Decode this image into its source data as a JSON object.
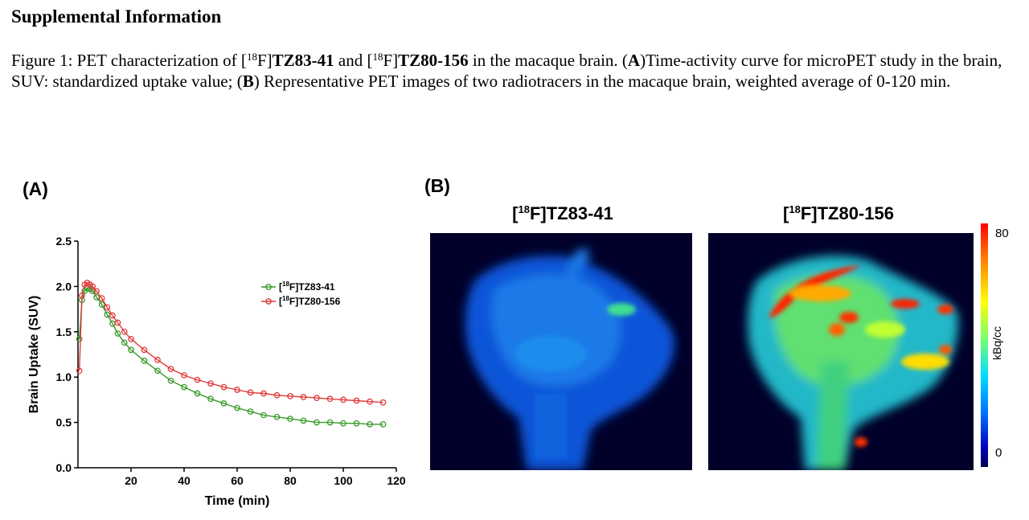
{
  "heading": "Supplemental Information",
  "caption": {
    "t1": "Figure 1: PET characterization of [",
    "sup1": "18",
    "t2": "F]",
    "b1": "TZ83-41",
    "t3": " and [",
    "sup2": "18",
    "t4": "F]",
    "b2": "TZ80-156",
    "t5": " in the macaque brain. (",
    "bA": "A",
    "t6": ")Time-activity curve for microPET study in the brain, SUV: standardized uptake value; (",
    "bB": "B",
    "t7": ") Representative PET images of two radiotracers in the macaque brain, weighted average of 0-120 min."
  },
  "panel_a_label": "(A)",
  "panel_b_label": "(B)",
  "images": {
    "left": {
      "sup": "18",
      "pre": "[",
      "post": "F]TZ83-41"
    },
    "right": {
      "sup": "18",
      "pre": "[",
      "post": "F]TZ80-156"
    }
  },
  "colorbar": {
    "max_label": "80",
    "min_label": "0",
    "unit": "kBq/cc"
  },
  "colors": {
    "series1": "#3a9a2a",
    "series2": "#e03a3a"
  },
  "chart_data": {
    "type": "line",
    "xlabel": "Time (min)",
    "ylabel": "Brain Uptake (SUV)",
    "xlim": [
      0,
      120
    ],
    "ylim": [
      0,
      2.5
    ],
    "xticks": [
      20,
      40,
      60,
      80,
      100,
      120
    ],
    "yticks": [
      0.0,
      0.5,
      1.0,
      1.5,
      2.0,
      2.5
    ],
    "ytick_labels": [
      "0.0",
      "0.5",
      "1.0",
      "1.5",
      "2.0",
      "2.5"
    ],
    "legend_position": "top-right",
    "series": [
      {
        "name": "[18F]TZ83-41",
        "legend_sup": "18",
        "legend_pre": "[",
        "legend_post": "F]TZ83-41",
        "color": "#3a9a2a",
        "x": [
          0.5,
          1.5,
          2.5,
          3.5,
          4.5,
          5.5,
          7,
          9,
          11,
          13,
          15,
          17.5,
          20,
          25,
          30,
          35,
          40,
          45,
          50,
          55,
          60,
          65,
          70,
          75,
          80,
          85,
          90,
          95,
          100,
          105,
          110,
          115
        ],
        "y": [
          1.42,
          1.85,
          1.95,
          1.98,
          1.97,
          1.95,
          1.88,
          1.8,
          1.69,
          1.59,
          1.48,
          1.38,
          1.3,
          1.18,
          1.07,
          0.96,
          0.89,
          0.82,
          0.76,
          0.71,
          0.66,
          0.62,
          0.58,
          0.56,
          0.54,
          0.52,
          0.5,
          0.5,
          0.49,
          0.49,
          0.48,
          0.48
        ]
      },
      {
        "name": "[18F]TZ80-156",
        "legend_sup": "18",
        "legend_pre": "[",
        "legend_post": "F]TZ80-156",
        "color": "#e03a3a",
        "x": [
          0.5,
          1.5,
          2.5,
          3.5,
          4.5,
          5.5,
          7,
          9,
          11,
          13,
          15,
          17.5,
          20,
          25,
          30,
          35,
          40,
          45,
          50,
          55,
          60,
          65,
          70,
          75,
          80,
          85,
          90,
          95,
          100,
          105,
          110,
          115
        ],
        "y": [
          1.07,
          1.9,
          2.02,
          2.04,
          2.02,
          2.0,
          1.95,
          1.87,
          1.77,
          1.68,
          1.6,
          1.5,
          1.42,
          1.3,
          1.19,
          1.09,
          1.02,
          0.97,
          0.93,
          0.89,
          0.86,
          0.83,
          0.82,
          0.8,
          0.79,
          0.78,
          0.77,
          0.76,
          0.75,
          0.74,
          0.73,
          0.72
        ]
      }
    ]
  }
}
